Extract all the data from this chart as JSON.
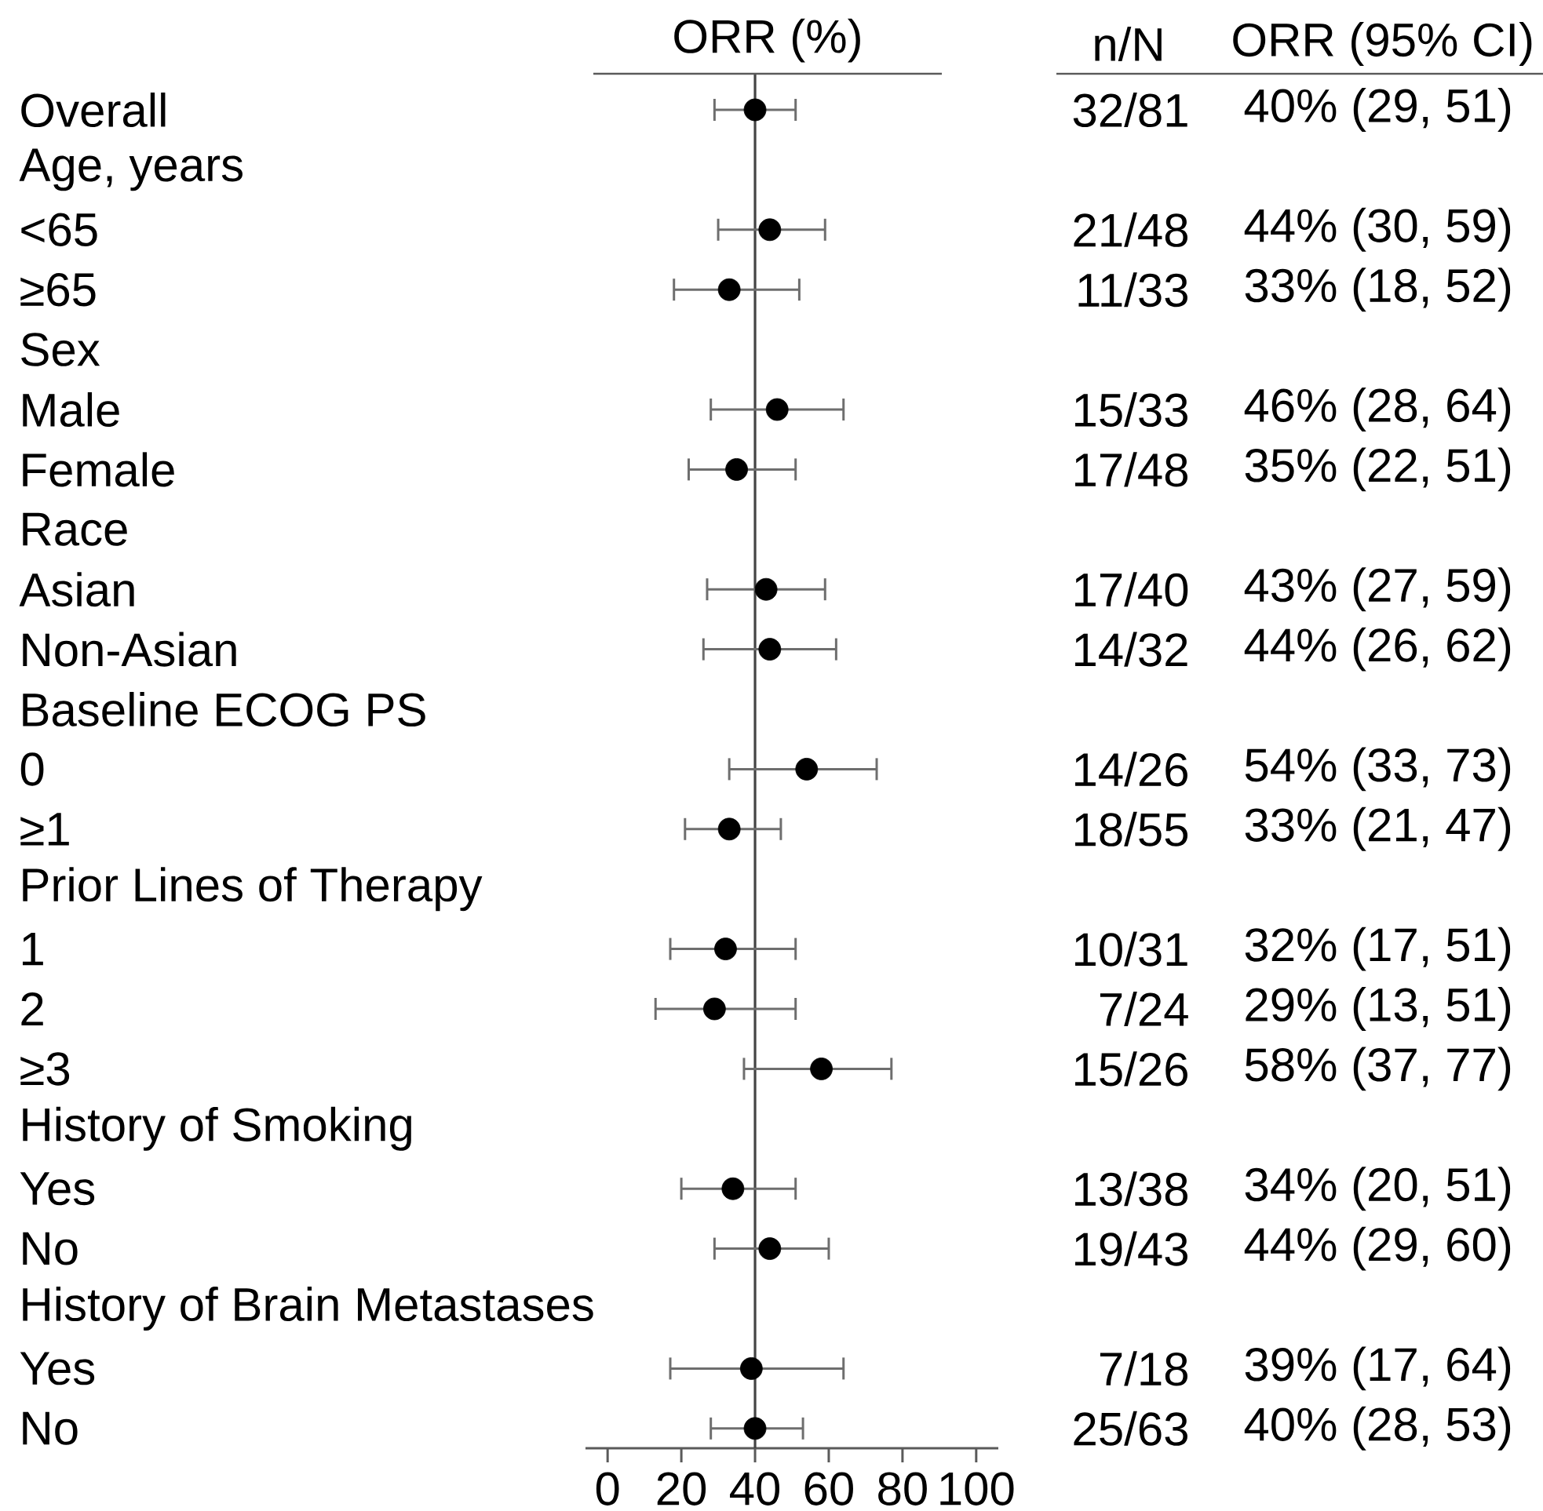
{
  "chart_data": {
    "type": "scatter",
    "orientation": "horizontal",
    "xlabel": "ORR (%)",
    "marker": "circle",
    "color": "#000000",
    "categories": [
      "Overall",
      "Age, years",
      "<65",
      "≥65",
      "Sex",
      "Male",
      "Female",
      "Race",
      "Asian",
      "Non-Asian",
      "Baseline ECOG PS",
      "0",
      "≥1",
      "Prior Lines of Therapy",
      "1",
      "2",
      "≥3",
      "History of Smoking",
      "Yes",
      "No",
      "History of Brain Metastases",
      "Yes",
      "No"
    ],
    "values": [
      40,
      null,
      44,
      33,
      null,
      46,
      35,
      null,
      43,
      44,
      null,
      54,
      33,
      null,
      32,
      29,
      58,
      null,
      34,
      44,
      null,
      39,
      40
    ],
    "errors": [
      [
        29,
        51
      ],
      null,
      [
        30,
        59
      ],
      [
        18,
        52
      ],
      null,
      [
        28,
        64
      ],
      [
        22,
        51
      ],
      null,
      [
        27,
        59
      ],
      [
        26,
        62
      ],
      null,
      [
        33,
        73
      ],
      [
        21,
        47
      ],
      null,
      [
        17,
        51
      ],
      [
        13,
        51
      ],
      [
        37,
        77
      ],
      null,
      [
        20,
        51
      ],
      [
        29,
        60
      ],
      null,
      [
        17,
        64
      ],
      [
        28,
        53
      ]
    ],
    "value_labels": [
      "40% (29, 51)",
      null,
      "44% (30, 59)",
      "33% (18, 52)",
      null,
      "46% (28, 64)",
      "35% (22, 51)",
      null,
      "43% (27, 59)",
      "44% (26, 62)",
      null,
      "54% (33, 73)",
      "33% (21, 47)",
      null,
      "32% (17, 51)",
      "29% (13, 51)",
      "58% (37, 77)",
      null,
      "34% (20, 51)",
      "44% (29, 60)",
      null,
      "39% (17, 64)",
      "40% (28, 53)"
    ],
    "annotations": [
      "n/N",
      "ORR (95% CI)",
      "32/81",
      "21/48",
      "11/33",
      "15/33",
      "17/48",
      "17/40",
      "14/32",
      "14/26",
      "18/55",
      "10/31",
      "7/24",
      "15/26",
      "13/38",
      "19/43",
      "7/18",
      "25/63"
    ],
    "ref_lines": [
      {
        "axis": "x",
        "value": 40,
        "color": "#444444"
      }
    ],
    "xlim": [
      -6,
      106
    ],
    "xticks": [
      0,
      20,
      40,
      60,
      80,
      100
    ]
  }
}
